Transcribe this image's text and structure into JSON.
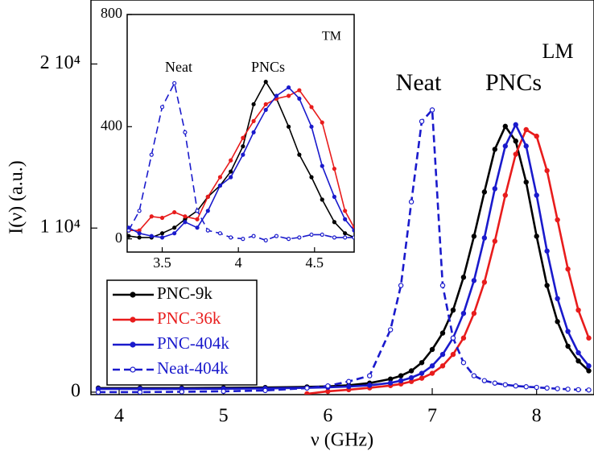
{
  "chart_data": [
    {
      "type": "line",
      "xlabel": "ν (GHz)",
      "ylabel": "I(ν) (a.u.)",
      "annotations": [
        "Neat",
        "PNCs",
        "LM"
      ],
      "xlim": [
        3.73,
        8.55
      ],
      "ylim": [
        -150,
        23900
      ],
      "xticks": [
        4,
        5,
        6,
        7,
        8
      ],
      "yticks": [
        0,
        {
          "value": 10000,
          "label": "1 10⁴"
        },
        {
          "value": 20000,
          "label": "2 10⁴"
        }
      ],
      "legend": "lower left",
      "x": [
        3.8,
        4.2,
        4.6,
        5.0,
        5.4,
        5.8,
        6.0,
        6.2,
        6.4,
        6.6,
        6.7,
        6.8,
        6.9,
        7.0,
        7.1,
        7.2,
        7.3,
        7.4,
        7.5,
        7.6,
        7.7,
        7.8,
        7.9,
        8.0,
        8.1,
        8.2,
        8.3,
        8.4,
        8.5
      ],
      "series": [
        {
          "name": "PNC-9k",
          "color": "#000000",
          "dash": false,
          "hollow": false,
          "values": [
            250,
            250,
            250,
            260,
            280,
            320,
            350,
            420,
            550,
            800,
            1000,
            1300,
            1800,
            2600,
            3600,
            5000,
            7000,
            9500,
            12200,
            14800,
            16200,
            15300,
            12800,
            9500,
            6500,
            4300,
            2800,
            1900,
            1300
          ]
        },
        {
          "name": "PNC-36k",
          "color": "#e81c1c",
          "dash": false,
          "hollow": false,
          "values": [
            null,
            null,
            null,
            null,
            null,
            -100,
            50,
            150,
            260,
            400,
            500,
            650,
            850,
            1150,
            1600,
            2300,
            3300,
            4800,
            6700,
            9200,
            12000,
            14500,
            16000,
            15600,
            13500,
            10500,
            7500,
            5000,
            3300
          ]
        },
        {
          "name": "PNC-404k",
          "color": "#1a1acc",
          "dash": false,
          "hollow": false,
          "values": [
            200,
            200,
            200,
            210,
            230,
            260,
            290,
            340,
            420,
            560,
            700,
            880,
            1150,
            1600,
            2300,
            3300,
            4800,
            6800,
            9400,
            12400,
            15000,
            16300,
            15000,
            12000,
            8600,
            5700,
            3700,
            2400,
            1600
          ]
        },
        {
          "name": "Neat-404k",
          "color": "#1a1acc",
          "dash": true,
          "hollow": true,
          "values": [
            0,
            0,
            20,
            50,
            100,
            250,
            380,
            650,
            1000,
            3800,
            6500,
            11600,
            16500,
            17200,
            6500,
            3300,
            1800,
            1000,
            700,
            550,
            450,
            380,
            330,
            290,
            250,
            210,
            180,
            150,
            130
          ]
        }
      ]
    },
    {
      "type": "line",
      "annotations": [
        "Neat",
        "PNCs",
        "TM"
      ],
      "xlim": [
        3.27,
        4.76
      ],
      "ylim": [
        -47,
        800
      ],
      "xticks": [
        3.5,
        4,
        4.5
      ],
      "yticks": [
        0,
        400,
        800
      ],
      "x": [
        3.28,
        3.35,
        3.43,
        3.5,
        3.58,
        3.65,
        3.73,
        3.8,
        3.88,
        3.95,
        4.03,
        4.1,
        4.18,
        4.25,
        4.33,
        4.4,
        4.48,
        4.55,
        4.63,
        4.7,
        4.76
      ],
      "series": [
        {
          "color": "#000000",
          "dash": false,
          "hollow": false,
          "values": [
            10,
            5,
            5,
            20,
            40,
            70,
            100,
            150,
            190,
            240,
            330,
            480,
            560,
            500,
            400,
            300,
            220,
            140,
            60,
            20,
            5
          ]
        },
        {
          "color": "#e81c1c",
          "dash": false,
          "hollow": false,
          "values": [
            30,
            30,
            80,
            75,
            95,
            80,
            70,
            150,
            220,
            280,
            360,
            420,
            480,
            500,
            510,
            530,
            470,
            415,
            250,
            100,
            40
          ]
        },
        {
          "color": "#1a1acc",
          "dash": false,
          "hollow": false,
          "values": [
            40,
            20,
            10,
            5,
            20,
            60,
            40,
            100,
            190,
            220,
            300,
            380,
            460,
            510,
            540,
            500,
            400,
            260,
            150,
            70,
            30
          ]
        },
        {
          "color": "#1a1acc",
          "dash": true,
          "hollow": true,
          "values": [
            30,
            100,
            300,
            470,
            555,
            380,
            100,
            30,
            20,
            5,
            0,
            10,
            -5,
            10,
            0,
            5,
            15,
            15,
            5,
            5,
            5
          ]
        }
      ]
    }
  ]
}
